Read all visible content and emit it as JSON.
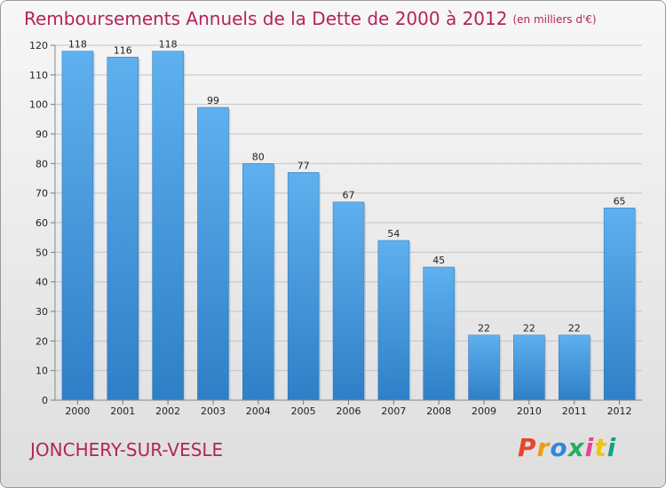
{
  "chart_data": {
    "type": "bar",
    "title": "Remboursements Annuels de la Dette de 2000 à 2012",
    "unit_label": "(en milliers d'€)",
    "categories": [
      "2000",
      "2001",
      "2002",
      "2003",
      "2004",
      "2005",
      "2006",
      "2007",
      "2008",
      "2009",
      "2010",
      "2011",
      "2012"
    ],
    "values": [
      118,
      116,
      118,
      99,
      80,
      77,
      67,
      54,
      45,
      22,
      22,
      22,
      65
    ],
    "ylim": [
      0,
      120
    ],
    "yticks": [
      0,
      10,
      20,
      30,
      40,
      50,
      60,
      70,
      80,
      90,
      100,
      110,
      120
    ],
    "grid": true,
    "bar_color": "#3b8fd6"
  },
  "footer": {
    "city": "JONCHERY-SUR-VESLE",
    "brand": "Proxiti",
    "brand_colors": [
      "#e8452c",
      "#f39c12",
      "#2e86de",
      "#27ae60",
      "#e84393",
      "#f1c40f",
      "#16a085"
    ]
  }
}
